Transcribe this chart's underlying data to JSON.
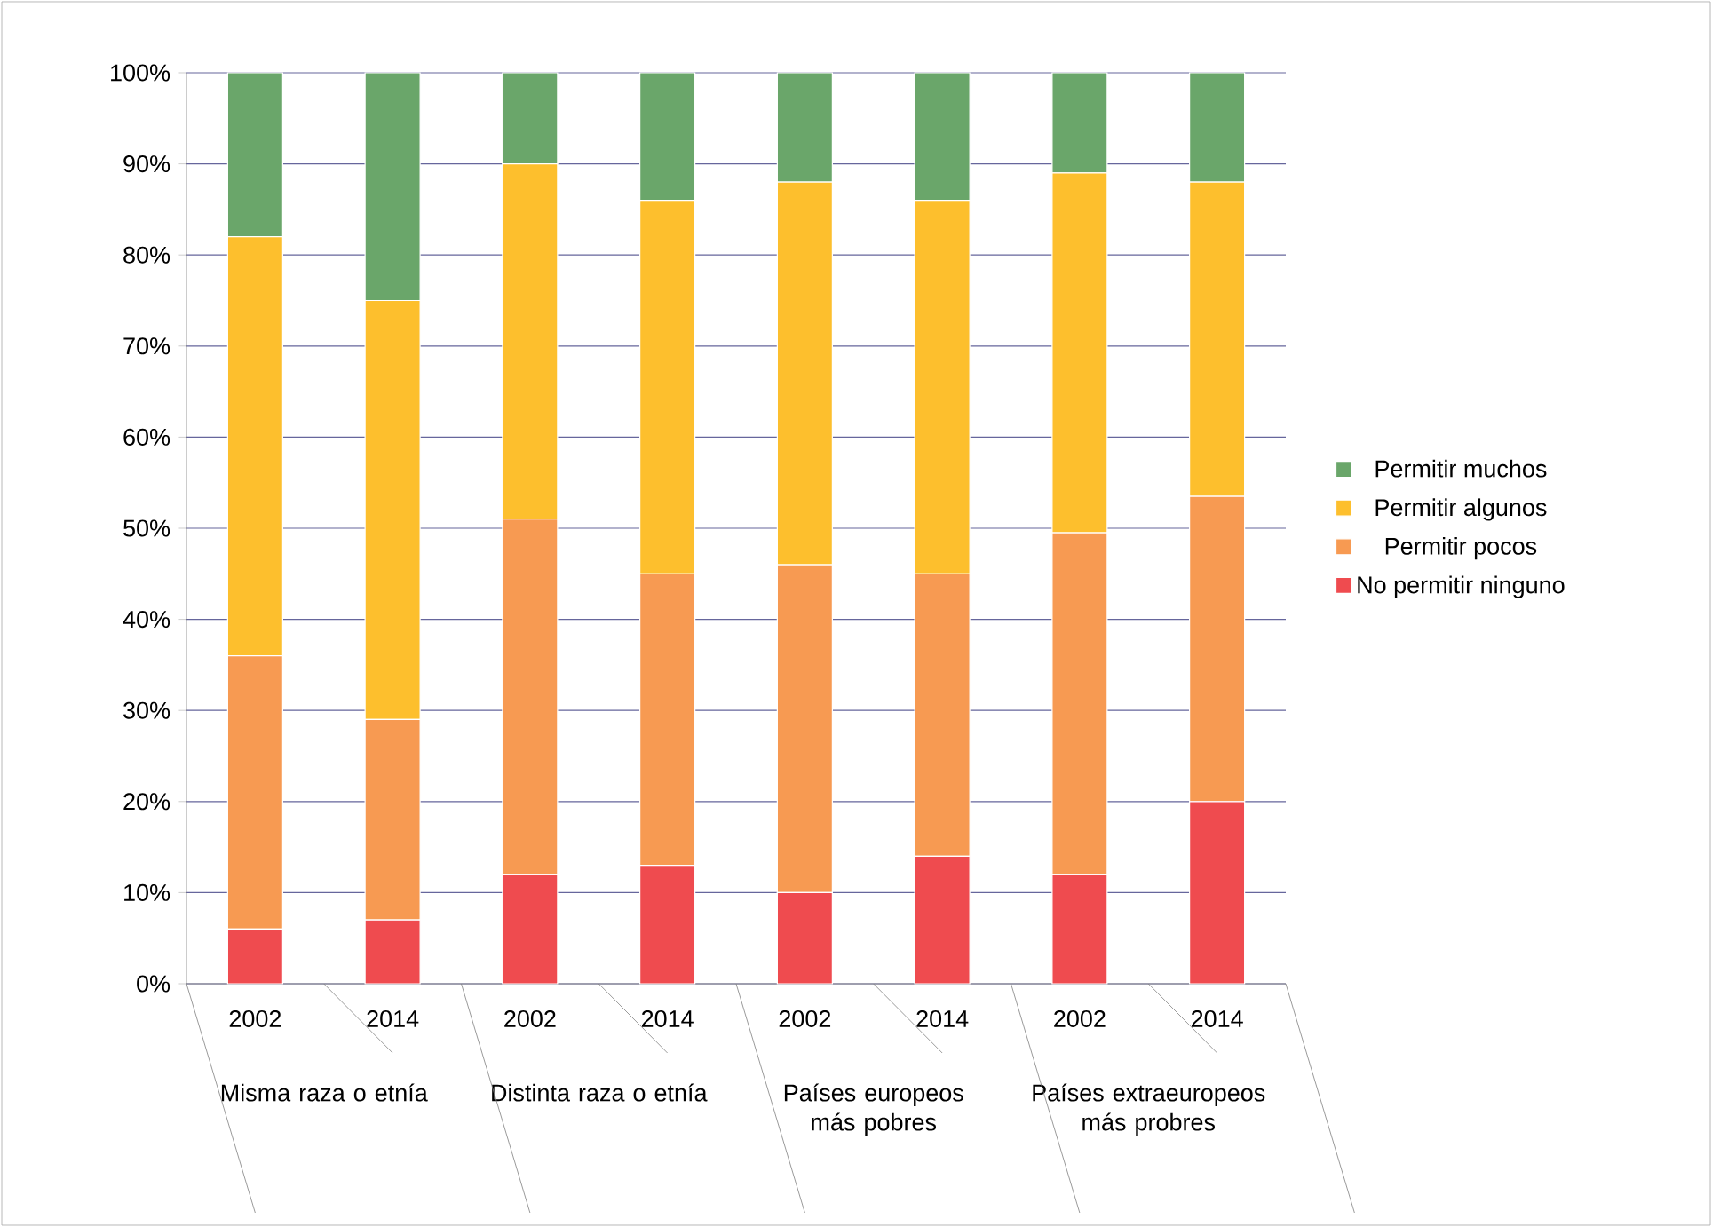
{
  "chart_data": {
    "type": "bar",
    "stacked": true,
    "categories": [
      "2002",
      "2014",
      "2002",
      "2014",
      "2002",
      "2014",
      "2002",
      "2014"
    ],
    "annotations": [
      "Misma raza o etnía",
      "Distinta raza o etnía",
      "Países europeos más pobres",
      "Países extraeuropeos más probres"
    ],
    "series": [
      {
        "name": "No permitir ninguno",
        "color": "#ef4b4f",
        "values": [
          6,
          7,
          12,
          13,
          10,
          14,
          12,
          20
        ]
      },
      {
        "name": "Permitir pocos",
        "color": "#f79a52",
        "values": [
          30,
          22,
          39,
          32,
          36,
          31,
          37.5,
          33.5
        ]
      },
      {
        "name": "Permitir algunos",
        "color": "#fdbf2d",
        "values": [
          46,
          46,
          39,
          41,
          42,
          41,
          39.5,
          34.5
        ]
      },
      {
        "name": "Permitir muchos",
        "color": "#6aa66a",
        "values": [
          18,
          25,
          10,
          14,
          12,
          14,
          11,
          12
        ]
      }
    ],
    "ylim": [
      0,
      100
    ],
    "yticks": [
      {
        "value": 0,
        "label": "0%"
      },
      {
        "value": 10,
        "label": "10%"
      },
      {
        "value": 20,
        "label": "20%"
      },
      {
        "value": 30,
        "label": "30%"
      },
      {
        "value": 40,
        "label": "40%"
      },
      {
        "value": 50,
        "label": "50%"
      },
      {
        "value": 60,
        "label": "60%"
      },
      {
        "value": 70,
        "label": "70%"
      },
      {
        "value": 80,
        "label": "80%"
      },
      {
        "value": 90,
        "label": "90%"
      },
      {
        "value": 100,
        "label": "100%"
      }
    ],
    "grid": "y",
    "legend": "right"
  }
}
